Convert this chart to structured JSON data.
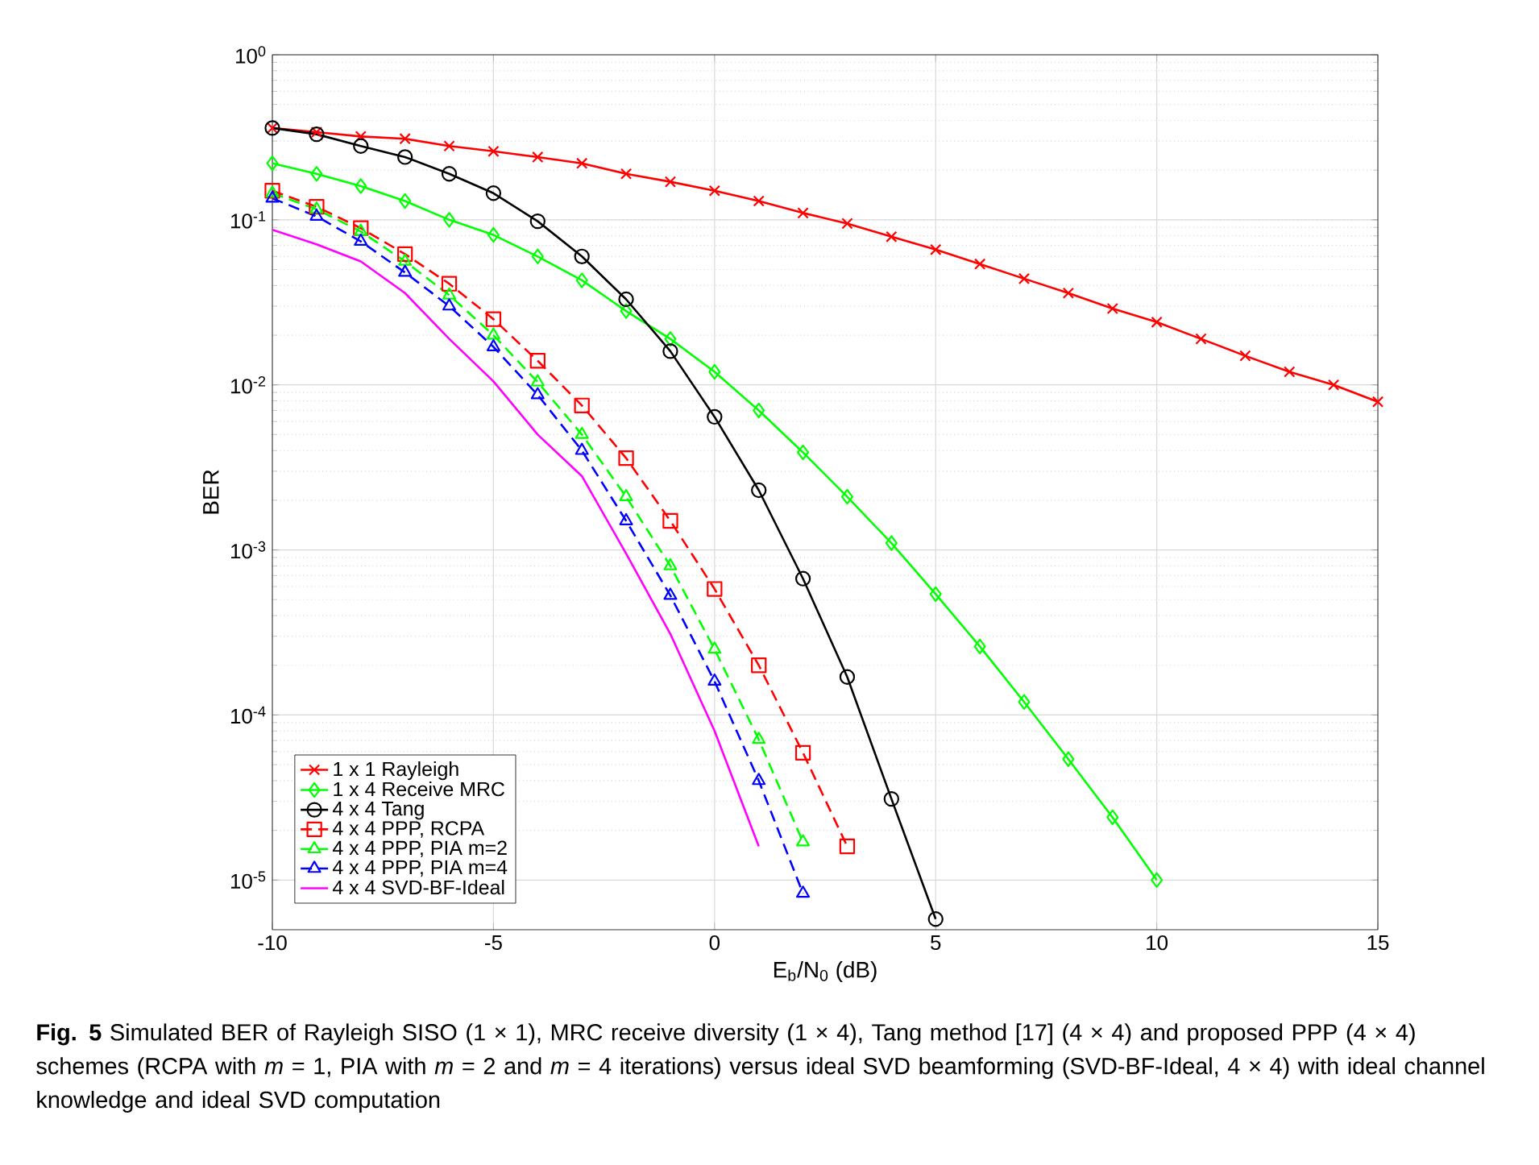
{
  "chart_data": {
    "type": "line",
    "xlabel": "E$_{b}$/N$_{0}$ (dB)",
    "ylabel": "BER",
    "xlim": [
      -10,
      15
    ],
    "ylim": [
      5e-06,
      1
    ],
    "log": "y",
    "grid": true,
    "legend": "bottom left",
    "xticks": [
      -10,
      -5,
      0,
      5,
      10,
      15
    ],
    "yticks": [
      {
        "value": 1e-05,
        "label": "10$^{-5}$"
      },
      {
        "value": 0.0001,
        "label": "10$^{-4}$"
      },
      {
        "value": 0.001,
        "label": "10$^{-3}$"
      },
      {
        "value": 0.01,
        "label": "10$^{-2}$"
      },
      {
        "value": 0.1,
        "label": "10$^{-1}$"
      },
      {
        "value": 1,
        "label": "10$^{0}$"
      }
    ],
    "annotations": [
      "**Fig. 5** Simulated BER of Rayleigh SISO (1 × 1), MRC receive diversity (1 × 4), Tang method [17] (4 × 4) and proposed PPP (4 × 4) schemes (RCPA with *m* = 1, PIA with *m* = 2 and *m* = 4 iterations) versus ideal SVD beamforming (SVD-BF-Ideal, 4 × 4) with ideal channel knowledge and ideal SVD computation"
    ],
    "series": [
      {
        "name": "1 x 1 Rayleigh",
        "color": "#ff0000",
        "marker": "cross",
        "line_style": "solid",
        "x": [
          -10,
          -9,
          -8,
          -7,
          -6,
          -5,
          -4,
          -3,
          -2,
          -1,
          0,
          1,
          2,
          3,
          4,
          5,
          6,
          7,
          8,
          9,
          10,
          11,
          12,
          13,
          14,
          15
        ],
        "values": [
          0.36,
          0.34,
          0.32,
          0.31,
          0.28,
          0.26,
          0.24,
          0.22,
          0.19,
          0.17,
          0.15,
          0.13,
          0.11,
          0.095,
          0.079,
          0.066,
          0.054,
          0.044,
          0.036,
          0.029,
          0.024,
          0.019,
          0.015,
          0.012,
          0.01,
          0.0079
        ]
      },
      {
        "name": "1 x 4 Receive MRC",
        "color": "#00ff00",
        "marker": "diamond",
        "line_style": "solid",
        "x": [
          -10,
          -9,
          -8,
          -7,
          -6,
          -5,
          -4,
          -3,
          -2,
          -1,
          0,
          1,
          2,
          3,
          4,
          5,
          6,
          7,
          8,
          9,
          10
        ],
        "values": [
          0.22,
          0.19,
          0.16,
          0.13,
          0.1,
          0.081,
          0.06,
          0.043,
          0.028,
          0.019,
          0.012,
          0.007,
          0.0039,
          0.0021,
          0.0011,
          0.00054,
          0.00026,
          0.00012,
          5.4e-05,
          2.4e-05,
          1e-05
        ]
      },
      {
        "name": "4 x 4 Tang",
        "color": "#000000",
        "marker": "circle",
        "line_style": "solid",
        "x": [
          -10,
          -9,
          -8,
          -7,
          -6,
          -5,
          -4,
          -3,
          -2,
          -1,
          0,
          1,
          2,
          3,
          4,
          5
        ],
        "values": [
          0.36,
          0.33,
          0.28,
          0.24,
          0.19,
          0.145,
          0.098,
          0.06,
          0.033,
          0.016,
          0.0064,
          0.0023,
          0.00067,
          0.00017,
          3.1e-05,
          5.8e-06
        ]
      },
      {
        "name": "4 x 4 PPP, RCPA",
        "color": "#ff0000",
        "marker": "square",
        "line_style": "dashed",
        "x": [
          -10,
          -9,
          -8,
          -7,
          -6,
          -5,
          -4,
          -3,
          -2,
          -1,
          0,
          1,
          2,
          3
        ],
        "values": [
          0.15,
          0.12,
          0.089,
          0.062,
          0.041,
          0.025,
          0.014,
          0.0075,
          0.0036,
          0.0015,
          0.00058,
          0.0002,
          5.9e-05,
          1.6e-05
        ]
      },
      {
        "name": "4 x 4 PPP, PIA m=2",
        "color": "#00ff00",
        "marker": "triangle",
        "line_style": "dashed",
        "x": [
          -10,
          -9,
          -8,
          -7,
          -6,
          -5,
          -4,
          -3,
          -2,
          -1,
          0,
          1,
          2
        ],
        "values": [
          0.145,
          0.116,
          0.085,
          0.056,
          0.035,
          0.02,
          0.0104,
          0.005,
          0.0021,
          0.0008,
          0.00025,
          7.1e-05,
          1.7e-05
        ]
      },
      {
        "name": "4 x 4 PPP, PIA m=4",
        "color": "#0000ff",
        "marker": "triangle-down",
        "line_style": "dashed",
        "x": [
          -10,
          -9,
          -8,
          -7,
          -6,
          -5,
          -4,
          -3,
          -2,
          -1,
          0,
          1,
          2
        ],
        "values": [
          0.135,
          0.105,
          0.074,
          0.048,
          0.03,
          0.017,
          0.0087,
          0.004,
          0.0015,
          0.00053,
          0.00016,
          4e-05,
          8.3e-06
        ]
      },
      {
        "name": "4 x 4 SVD-BF-Ideal",
        "color": "#ff00ff",
        "marker": "none",
        "line_style": "solid",
        "x": [
          -10,
          -9,
          -8,
          -7,
          -6,
          -5,
          -4,
          -3,
          -2,
          -1,
          0,
          1
        ],
        "values": [
          0.087,
          0.071,
          0.056,
          0.036,
          0.019,
          0.0105,
          0.005,
          0.0028,
          0.00095,
          0.00031,
          8e-05,
          1.6e-05
        ]
      }
    ]
  }
}
